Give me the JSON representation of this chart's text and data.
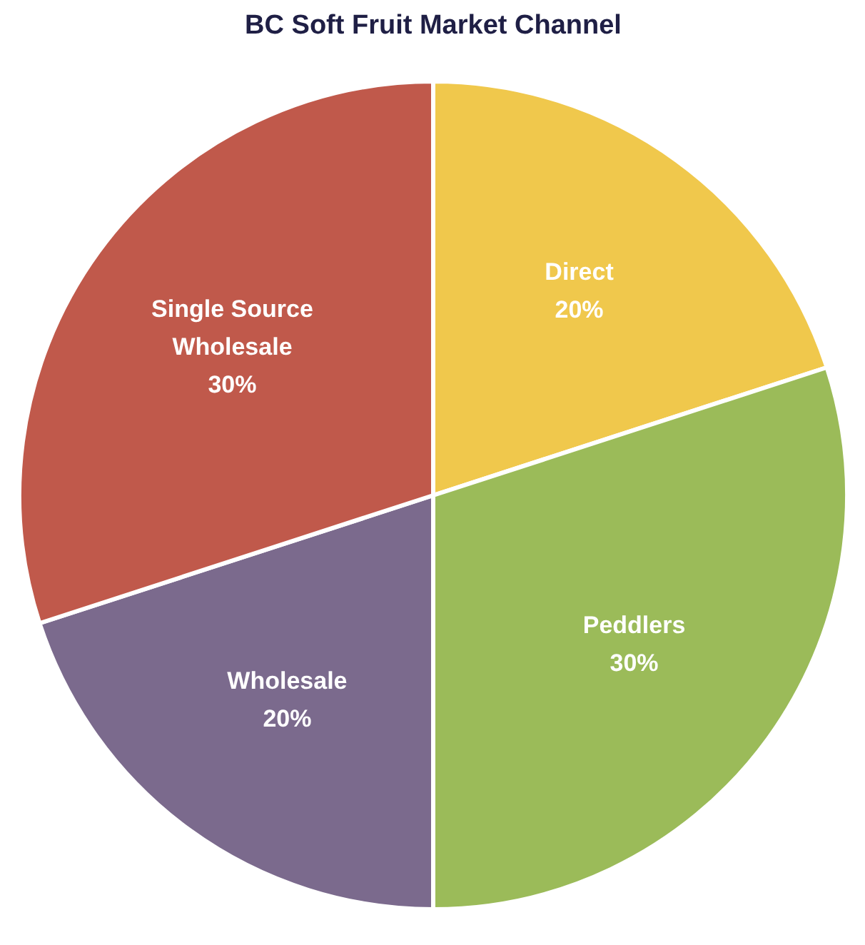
{
  "chart_data": {
    "type": "pie",
    "title": "BC Soft Fruit Market Channel",
    "categories": [
      "Direct",
      "Peddlers",
      "Wholesale",
      "Single Source Wholesale"
    ],
    "values": [
      20,
      30,
      20,
      30
    ],
    "colors": [
      "#f0c84c",
      "#9bbb59",
      "#7b6a8d",
      "#c0594b"
    ],
    "value_labels": [
      "20%",
      "30%",
      "20%",
      "30%"
    ]
  }
}
